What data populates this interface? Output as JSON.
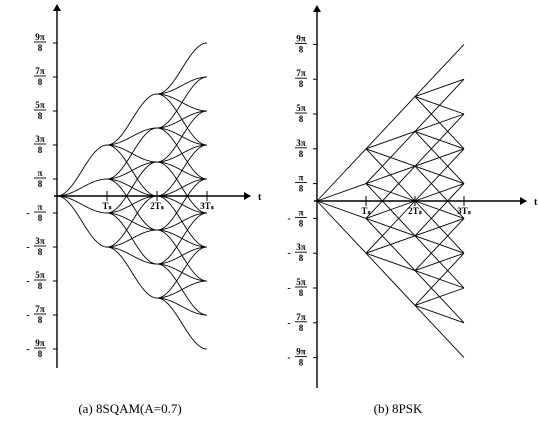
{
  "chart_data": [
    {
      "type": "line",
      "panel_caption": "(a)  8SQAM(A=0.7)",
      "x_axis_label": "t",
      "x_ticks": [
        "Tₛ",
        "2Tₛ",
        "3Tₛ"
      ],
      "x_range": [
        0,
        3
      ],
      "y_ticks": [
        {
          "sign": "",
          "num": "9π",
          "den": "8"
        },
        {
          "sign": "",
          "num": "7π",
          "den": "8"
        },
        {
          "sign": "",
          "num": "5π",
          "den": "8"
        },
        {
          "sign": "",
          "num": "3π",
          "den": "8"
        },
        {
          "sign": "",
          "num": "π",
          "den": "8"
        },
        {
          "sign": "-",
          "num": "π",
          "den": "8"
        },
        {
          "sign": "-",
          "num": "3π",
          "den": "8"
        },
        {
          "sign": "-",
          "num": "5π",
          "den": "8"
        },
        {
          "sign": "-",
          "num": "7π",
          "den": "8"
        },
        {
          "sign": "-",
          "num": "9π",
          "den": "8"
        }
      ],
      "y_range_units_of_pi_over_8": [
        -9,
        9
      ],
      "phase_step_per_symbol_units_of_pi_over_8": [
        -3,
        -1,
        1,
        3
      ],
      "transition_shape": "smooth",
      "trellis_paths": "all sequences of symbol steps over 3 symbol intervals starting at phase 0; endpoints at t=3: ±9, ±7, ±5, ±3, ±1 (π/8)"
    },
    {
      "type": "line",
      "panel_caption": "(b)  8PSK",
      "x_axis_label": "t",
      "x_ticks": [
        "Tₛ",
        "2Tₛ",
        "3Tₛ"
      ],
      "x_range": [
        0,
        3
      ],
      "y_ticks": [
        {
          "sign": "",
          "num": "9π",
          "den": "8"
        },
        {
          "sign": "",
          "num": "7π",
          "den": "8"
        },
        {
          "sign": "",
          "num": "5π",
          "den": "8"
        },
        {
          "sign": "",
          "num": "3π",
          "den": "8"
        },
        {
          "sign": "",
          "num": "π",
          "den": "8"
        },
        {
          "sign": "-",
          "num": "π",
          "den": "8"
        },
        {
          "sign": "-",
          "num": "3π",
          "den": "8"
        },
        {
          "sign": "-",
          "num": "5π",
          "den": "8"
        },
        {
          "sign": "-",
          "num": "7π",
          "den": "8"
        },
        {
          "sign": "-",
          "num": "9π",
          "den": "8"
        }
      ],
      "y_range_units_of_pi_over_8": [
        -9,
        9
      ],
      "phase_step_per_symbol_units_of_pi_over_8": [
        -3,
        -1,
        1,
        3
      ],
      "transition_shape": "linear",
      "trellis_paths": "all sequences of symbol steps over 3 symbol intervals starting at phase 0; endpoints at t=3: ±9, ±7, ±5, ±3, ±1 (π/8)"
    }
  ]
}
